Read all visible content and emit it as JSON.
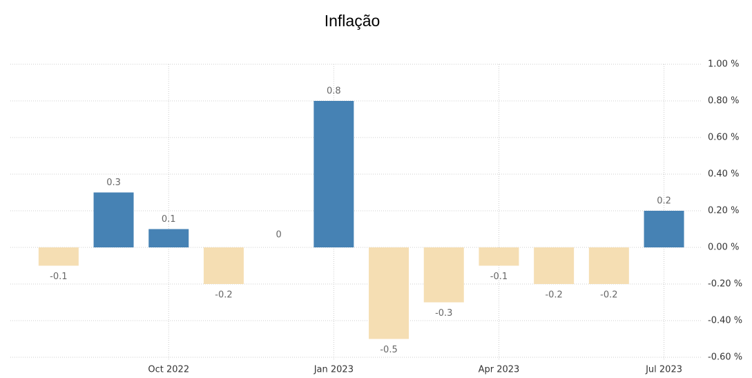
{
  "chart_data": {
    "type": "bar",
    "title": "Inflação",
    "categories": [
      null,
      null,
      "Oct 2022",
      null,
      null,
      "Jan 2023",
      null,
      null,
      "Apr 2023",
      null,
      null,
      "Jul 2023"
    ],
    "values": [
      -0.1,
      0.3,
      0.1,
      -0.2,
      0,
      0.8,
      -0.5,
      -0.3,
      -0.1,
      -0.2,
      -0.2,
      0.2
    ],
    "positive_color": "#4682b4",
    "negative_color": "#f5deb3",
    "ylim": [
      -0.6,
      1.0
    ],
    "yticks": [
      {
        "value": -0.6,
        "label": "-0.60 %"
      },
      {
        "value": -0.4,
        "label": "-0.40 %"
      },
      {
        "value": -0.2,
        "label": "-0.20 %"
      },
      {
        "value": 0,
        "label": "0.00 %"
      },
      {
        "value": 0.2,
        "label": "0.20 %"
      },
      {
        "value": 0.4,
        "label": "0.40 %"
      },
      {
        "value": 0.6,
        "label": "0.60 %"
      },
      {
        "value": 0.8,
        "label": "0.80 %"
      },
      {
        "value": 1.0,
        "label": "1.00 %"
      }
    ],
    "grid": true
  }
}
